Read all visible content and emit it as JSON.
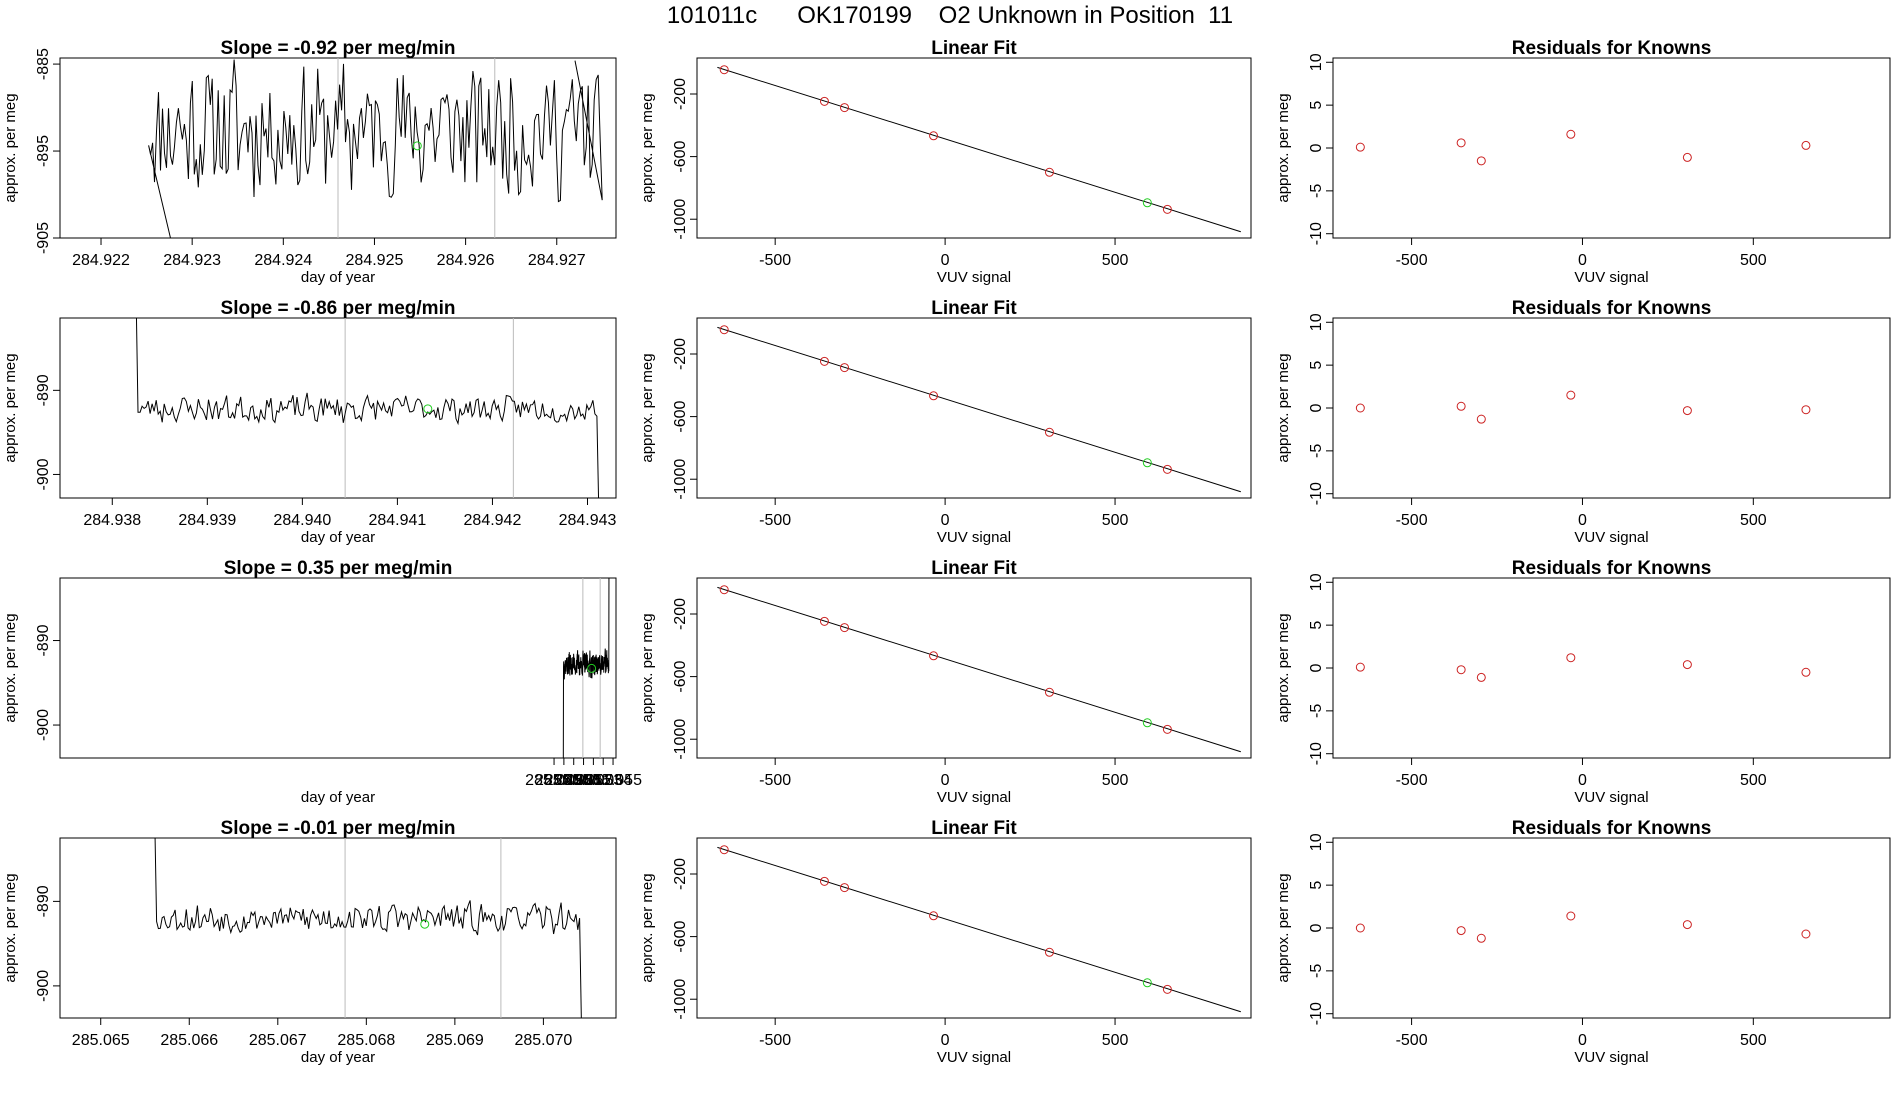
{
  "page": {
    "title": "101011c      OK170199    O2 Unknown in Position  11"
  },
  "chart_data": [
    {
      "type": "line",
      "kind": "timeseries",
      "title": "Slope =  -0.92  per meg/min",
      "xlabel": "day of year",
      "ylabel": "approx. per meg",
      "xlim": [
        284.92155,
        284.92765
      ],
      "ylim": [
        -905,
        -884.3
      ],
      "xticks": [
        284.922,
        284.923,
        284.924,
        284.925,
        284.926,
        284.927
      ],
      "xtick_labels": [
        "284.922",
        "284.923",
        "284.924",
        "284.925",
        "284.926",
        "284.927"
      ],
      "yticks": [
        -885,
        -895,
        -905
      ],
      "ytick_labels": [
        "-885",
        "-895",
        "-905"
      ],
      "vlines": [
        284.9246,
        284.92632
      ],
      "marker": {
        "x": 284.92547,
        "y": -894.4,
        "color": "#22cc22"
      },
      "noise": 10.0,
      "level": -892.5,
      "seed": 11,
      "start": 284.9225,
      "end": 284.92752,
      "lead": {
        "x": 284.9231,
        "y": -920
      },
      "tail": {
        "x": 284.9272,
        "y": -884.6
      },
      "line_color": "#000000"
    },
    {
      "type": "line",
      "kind": "linear_fit",
      "title": "Linear Fit",
      "xlabel": "VUV signal",
      "ylabel": "approx. per meg",
      "xlim": [
        -730,
        900
      ],
      "ylim": [
        -1120,
        30
      ],
      "xticks": [
        -500,
        0,
        500
      ],
      "xtick_labels": [
        "-500",
        "0",
        "500"
      ],
      "yticks": [
        -200,
        -600,
        -1000
      ],
      "ytick_labels": [
        "-200",
        "-600",
        "-1000"
      ],
      "fit_line": {
        "x": [
          -670,
          870
        ],
        "y": [
          -30,
          -1080
        ]
      },
      "points": {
        "x": [
          -650,
          -355,
          -296,
          -34,
          307,
          654
        ],
        "y": [
          -45,
          -247,
          -287,
          -467,
          -700,
          -937
        ],
        "color": "#cc2222"
      },
      "green_point": {
        "x": 595,
        "y": -895,
        "color": "#22cc22"
      }
    },
    {
      "type": "scatter",
      "kind": "residuals",
      "title": "Residuals for Knowns",
      "xlabel": "VUV signal",
      "ylabel": "approx. per meg",
      "xlim": [
        -730,
        900
      ],
      "ylim": [
        -10.5,
        10.5
      ],
      "xticks": [
        -500,
        0,
        500
      ],
      "xtick_labels": [
        "-500",
        "0",
        "500"
      ],
      "yticks": [
        10,
        5,
        0,
        -5,
        -10
      ],
      "ytick_labels": [
        "10",
        "5",
        "0",
        "-5",
        "-10"
      ],
      "points": {
        "x": [
          -650,
          -355,
          -296,
          -34,
          307,
          654
        ],
        "y": [
          0.1,
          0.6,
          -1.5,
          1.6,
          -1.1,
          0.3
        ],
        "color": "#cc2222"
      }
    },
    {
      "type": "line",
      "kind": "timeseries",
      "title": "Slope =  -0.86  per meg/min",
      "xlabel": "day of year",
      "ylabel": "approx. per meg",
      "xlim": [
        284.93745,
        284.9433
      ],
      "ylim": [
        -902.8,
        -881.4
      ],
      "xticks": [
        284.938,
        284.939,
        284.94,
        284.941,
        284.942,
        284.943
      ],
      "xtick_labels": [
        "284.938",
        "284.939",
        "284.940",
        "284.941",
        "284.942",
        "284.943"
      ],
      "yticks": [
        -890,
        -900
      ],
      "ytick_labels": [
        "-890",
        "-900"
      ],
      "vlines": [
        284.94045,
        284.94222
      ],
      "marker": {
        "x": 284.94132,
        "y": -892.2,
        "color": "#22cc22"
      },
      "noise": 2.2,
      "level": -892.2,
      "seed": 23,
      "start": 284.93825,
      "end": 284.94312,
      "lead": {
        "x": 284.93825,
        "y": -878
      },
      "tail": {
        "x": 284.94312,
        "y": -905
      },
      "line_color": "#000000"
    },
    {
      "type": "line",
      "kind": "linear_fit",
      "title": "Linear Fit",
      "xlabel": "VUV signal",
      "ylabel": "approx. per meg",
      "xlim": [
        -730,
        900
      ],
      "ylim": [
        -1120,
        30
      ],
      "xticks": [
        -500,
        0,
        500
      ],
      "xtick_labels": [
        "-500",
        "0",
        "500"
      ],
      "yticks": [
        -200,
        -600,
        -1000
      ],
      "ytick_labels": [
        "-200",
        "-600",
        "-1000"
      ],
      "fit_line": {
        "x": [
          -670,
          870
        ],
        "y": [
          -30,
          -1080
        ]
      },
      "points": {
        "x": [
          -650,
          -355,
          -296,
          -34,
          307,
          654
        ],
        "y": [
          -45,
          -247,
          -287,
          -467,
          -700,
          -937
        ],
        "color": "#cc2222"
      },
      "green_point": {
        "x": 595,
        "y": -895,
        "color": "#22cc22"
      }
    },
    {
      "type": "scatter",
      "kind": "residuals",
      "title": "Residuals for Knowns",
      "xlabel": "VUV signal",
      "ylabel": "approx. per meg",
      "xlim": [
        -730,
        900
      ],
      "ylim": [
        -10.5,
        10.5
      ],
      "xticks": [
        -500,
        0,
        500
      ],
      "xtick_labels": [
        "-500",
        "0",
        "500"
      ],
      "yticks": [
        10,
        5,
        0,
        -5,
        -10
      ],
      "ytick_labels": [
        "10",
        "5",
        "0",
        "-5",
        "-10"
      ],
      "points": {
        "x": [
          -650,
          -355,
          -296,
          -34,
          307,
          654
        ],
        "y": [
          0.0,
          0.2,
          -1.3,
          1.5,
          -0.3,
          -0.2
        ],
        "color": "#cc2222"
      }
    },
    {
      "type": "line",
      "kind": "timeseries",
      "title": "Slope =  0.35  per meg/min",
      "xlabel": "day of year",
      "ylabel": "approx. per meg",
      "xlim": [
        284.99876,
        285.0553
      ],
      "ylim": [
        -903.9,
        -882.6
      ],
      "xticks": [
        285.049,
        285.05,
        285.051,
        285.052,
        285.053,
        285.054,
        285.055
      ],
      "xtick_labels": [
        "285.049",
        "285.050",
        "285.051",
        "285.052",
        "285.053",
        "285.054",
        "285.055"
      ],
      "yticks": [
        -890,
        -900
      ],
      "ytick_labels": [
        "-890",
        "-900"
      ],
      "vlines": [
        285.05193,
        285.05369
      ],
      "marker": {
        "x": 285.05282,
        "y": -893.3,
        "color": "#22cc22"
      },
      "noise": 2.0,
      "level": -892.8,
      "seed": 37,
      "start": 285.04994,
      "end": 285.05459,
      "lead": {
        "x": 285.04994,
        "y": -905
      },
      "tail": {
        "x": 285.05459,
        "y": -879
      },
      "line_color": "#000000"
    },
    {
      "type": "line",
      "kind": "linear_fit",
      "title": "Linear Fit",
      "xlabel": "VUV signal",
      "ylabel": "approx. per meg",
      "xlim": [
        -730,
        900
      ],
      "ylim": [
        -1120,
        30
      ],
      "xticks": [
        -500,
        0,
        500
      ],
      "xtick_labels": [
        "-500",
        "0",
        "500"
      ],
      "yticks": [
        -200,
        -600,
        -1000
      ],
      "ytick_labels": [
        "-200",
        "-600",
        "-1000"
      ],
      "fit_line": {
        "x": [
          -670,
          870
        ],
        "y": [
          -30,
          -1080
        ]
      },
      "points": {
        "x": [
          -650,
          -355,
          -296,
          -34,
          307,
          654
        ],
        "y": [
          -45,
          -247,
          -287,
          -467,
          -700,
          -937
        ],
        "color": "#cc2222"
      },
      "green_point": {
        "x": 595,
        "y": -895,
        "color": "#22cc22"
      }
    },
    {
      "type": "scatter",
      "kind": "residuals",
      "title": "Residuals for Knowns",
      "xlabel": "VUV signal",
      "ylabel": "approx. per meg",
      "xlim": [
        -730,
        900
      ],
      "ylim": [
        -10.5,
        10.5
      ],
      "xticks": [
        -500,
        0,
        500
      ],
      "xtick_labels": [
        "-500",
        "0",
        "500"
      ],
      "yticks": [
        10,
        5,
        0,
        -5,
        -10
      ],
      "ytick_labels": [
        "10",
        "5",
        "0",
        "-5",
        "-10"
      ],
      "points": {
        "x": [
          -650,
          -355,
          -296,
          -34,
          307,
          654
        ],
        "y": [
          0.1,
          -0.2,
          -1.1,
          1.2,
          0.4,
          -0.5
        ],
        "color": "#cc2222"
      }
    },
    {
      "type": "line",
      "kind": "timeseries",
      "title": "Slope =  -0.01  per meg/min",
      "xlabel": "day of year",
      "ylabel": "approx. per meg",
      "xlim": [
        285.06454,
        285.07082
      ],
      "ylim": [
        -903.8,
        -882.5
      ],
      "xticks": [
        285.065,
        285.066,
        285.067,
        285.068,
        285.069,
        285.07
      ],
      "xtick_labels": [
        "285.065",
        "285.066",
        "285.067",
        "285.068",
        "285.069",
        "285.070"
      ],
      "yticks": [
        -890,
        -900
      ],
      "ytick_labels": [
        "-890",
        "-900"
      ],
      "vlines": [
        285.06776,
        285.06952
      ],
      "marker": {
        "x": 285.06866,
        "y": -892.7,
        "color": "#22cc22"
      },
      "noise": 2.3,
      "level": -892.0,
      "seed": 53,
      "start": 285.06561,
      "end": 285.07043,
      "lead": {
        "x": 285.06561,
        "y": -880
      },
      "tail": {
        "x": 285.07043,
        "y": -905
      },
      "line_color": "#000000"
    },
    {
      "type": "line",
      "kind": "linear_fit",
      "title": "Linear Fit",
      "xlabel": "VUV signal",
      "ylabel": "approx. per meg",
      "xlim": [
        -730,
        900
      ],
      "ylim": [
        -1120,
        30
      ],
      "xticks": [
        -500,
        0,
        500
      ],
      "xtick_labels": [
        "-500",
        "0",
        "500"
      ],
      "yticks": [
        -200,
        -600,
        -1000
      ],
      "ytick_labels": [
        "-200",
        "-600",
        "-1000"
      ],
      "fit_line": {
        "x": [
          -670,
          870
        ],
        "y": [
          -30,
          -1080
        ]
      },
      "points": {
        "x": [
          -650,
          -355,
          -296,
          -34,
          307,
          654
        ],
        "y": [
          -45,
          -247,
          -287,
          -467,
          -700,
          -937
        ],
        "color": "#cc2222"
      },
      "green_point": {
        "x": 595,
        "y": -895,
        "color": "#22cc22"
      }
    },
    {
      "type": "scatter",
      "kind": "residuals",
      "title": "Residuals for Knowns",
      "xlabel": "VUV signal",
      "ylabel": "approx. per meg",
      "xlim": [
        -730,
        900
      ],
      "ylim": [
        -10.5,
        10.5
      ],
      "xticks": [
        -500,
        0,
        500
      ],
      "xtick_labels": [
        "-500",
        "0",
        "500"
      ],
      "yticks": [
        10,
        5,
        0,
        -5,
        -10
      ],
      "ytick_labels": [
        "10",
        "5",
        "0",
        "-5",
        "-10"
      ],
      "points": {
        "x": [
          -650,
          -355,
          -296,
          -34,
          307,
          654
        ],
        "y": [
          0.0,
          -0.3,
          -1.2,
          1.4,
          0.4,
          -0.7
        ],
        "color": "#cc2222"
      }
    }
  ]
}
